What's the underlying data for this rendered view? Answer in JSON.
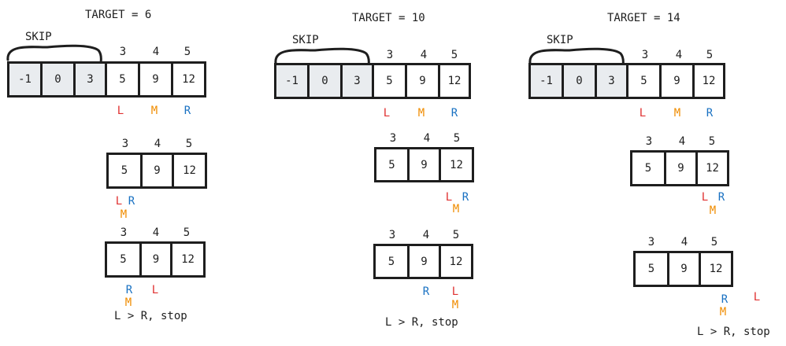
{
  "colors": {
    "L": "#e03131",
    "M": "#f08c00",
    "R": "#1971c2",
    "stroke": "#1e1e1e",
    "skip_fill": "#e9ecef"
  },
  "pointers": {
    "L": "L",
    "M": "M",
    "R": "R"
  },
  "panels": [
    {
      "title": "TARGET = 6",
      "skip_label": "SKIP",
      "full_array": {
        "values": [
          "-1",
          "0",
          "3",
          "5",
          "9",
          "12"
        ],
        "indices": [
          "3",
          "4",
          "5"
        ]
      },
      "rows": [
        {
          "values": [
            "5",
            "9",
            "12"
          ],
          "indices": [
            "3",
            "4",
            "5"
          ]
        },
        {
          "values": [
            "5",
            "9",
            "12"
          ],
          "indices": [
            "3",
            "4",
            "5"
          ]
        }
      ],
      "stop_text": "L > R, stop"
    },
    {
      "title": "TARGET = 10",
      "skip_label": "SKIP",
      "full_array": {
        "values": [
          "-1",
          "0",
          "3",
          "5",
          "9",
          "12"
        ],
        "indices": [
          "3",
          "4",
          "5"
        ]
      },
      "rows": [
        {
          "values": [
            "5",
            "9",
            "12"
          ],
          "indices": [
            "3",
            "4",
            "5"
          ]
        },
        {
          "values": [
            "5",
            "9",
            "12"
          ],
          "indices": [
            "3",
            "4",
            "5"
          ]
        }
      ],
      "stop_text": "L > R, stop"
    },
    {
      "title": "TARGET = 14",
      "skip_label": "SKIP",
      "full_array": {
        "values": [
          "-1",
          "0",
          "3",
          "5",
          "9",
          "12"
        ],
        "indices": [
          "3",
          "4",
          "5"
        ]
      },
      "rows": [
        {
          "values": [
            "5",
            "9",
            "12"
          ],
          "indices": [
            "3",
            "4",
            "5"
          ]
        },
        {
          "values": [
            "5",
            "9",
            "12"
          ],
          "indices": [
            "3",
            "4",
            "5"
          ]
        }
      ],
      "stop_text": "L > R, stop"
    }
  ]
}
